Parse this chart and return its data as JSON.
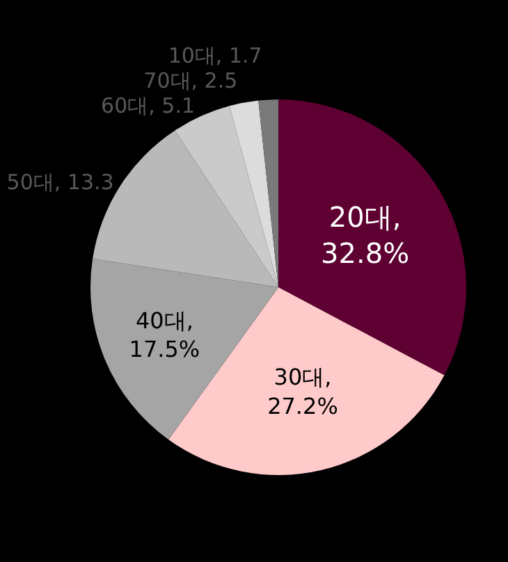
{
  "chart_data": {
    "type": "pie",
    "categories": [
      "20대",
      "30대",
      "40대",
      "50대",
      "60대",
      "70대",
      "10대"
    ],
    "values": [
      32.8,
      27.2,
      17.5,
      13.3,
      5.1,
      2.5,
      1.7
    ],
    "colors": [
      "#5e0032",
      "#ffcaca",
      "#a5a5a5",
      "#b9b9b9",
      "#cacaca",
      "#dcdcdc",
      "#7a7a7a"
    ],
    "value_labels": [
      ", 32.8%",
      ", 27.2%",
      ", 17.5%",
      ", 13.3",
      ", 5.1",
      ", 2.5",
      ", 1.7"
    ],
    "legend": false
  }
}
